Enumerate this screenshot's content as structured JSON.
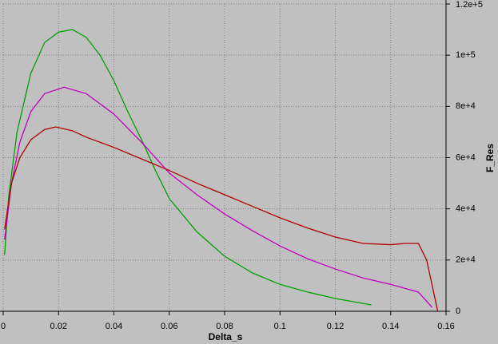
{
  "chart_data": {
    "type": "line",
    "xlabel": "Delta_s",
    "ylabel": "F_Res",
    "xlim": [
      0,
      0.16
    ],
    "xticks": [
      0,
      0.02,
      0.04,
      0.06,
      0.08,
      0.1,
      0.12,
      0.14,
      0.16
    ],
    "ylim": [
      0,
      120000
    ],
    "yticks": [
      0,
      {
        "value": 20000,
        "label": "2e+4"
      },
      {
        "value": 40000,
        "label": "4e+4"
      },
      {
        "value": 60000,
        "label": "6e+4"
      },
      {
        "value": 80000,
        "label": "8e+4"
      },
      {
        "value": 100000,
        "label": "1e+5"
      },
      {
        "value": 120000,
        "label": "1.2e+5"
      }
    ],
    "grid": true,
    "series": [
      {
        "color": "#00a000",
        "x": [
          0.0005,
          0.002,
          0.005,
          0.01,
          0.015,
          0.02,
          0.025,
          0.03,
          0.035,
          0.04,
          0.045,
          0.05,
          0.055,
          0.06,
          0.07,
          0.08,
          0.09,
          0.1,
          0.11,
          0.12,
          0.133
        ],
        "values": [
          22000,
          45000,
          70000,
          93000,
          105000,
          109000,
          110000,
          107000,
          100000,
          90000,
          78000,
          67000,
          55000,
          44000,
          31000,
          21500,
          15000,
          10500,
          7500,
          5000,
          2500
        ]
      },
      {
        "color": "#c000c0",
        "x": [
          0.0005,
          0.003,
          0.006,
          0.01,
          0.015,
          0.022,
          0.03,
          0.04,
          0.05,
          0.06,
          0.07,
          0.08,
          0.09,
          0.1,
          0.11,
          0.12,
          0.13,
          0.14,
          0.15,
          0.155
        ],
        "values": [
          28000,
          50000,
          66000,
          78000,
          85000,
          87500,
          85000,
          77000,
          66000,
          54000,
          45500,
          38000,
          31500,
          25500,
          20500,
          16500,
          13000,
          10500,
          7500,
          1500
        ]
      },
      {
        "color": "#b00000",
        "x": [
          0.0005,
          0.003,
          0.006,
          0.01,
          0.015,
          0.019,
          0.025,
          0.03,
          0.04,
          0.05,
          0.06,
          0.07,
          0.08,
          0.09,
          0.1,
          0.11,
          0.12,
          0.13,
          0.14,
          0.145,
          0.15,
          0.153,
          0.155,
          0.157
        ],
        "values": [
          32000,
          50000,
          60000,
          67000,
          71000,
          72000,
          70500,
          68000,
          64000,
          59500,
          55000,
          50000,
          45500,
          41000,
          36500,
          32500,
          29000,
          26500,
          26000,
          26500,
          26500,
          20000,
          10000,
          0
        ]
      }
    ]
  }
}
